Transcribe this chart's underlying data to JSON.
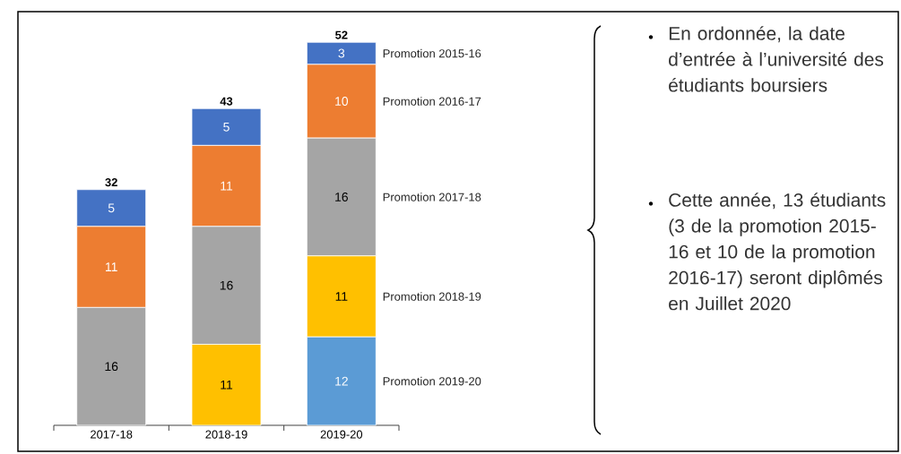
{
  "chart_data": {
    "type": "bar",
    "stacked": true,
    "data_labels": true,
    "categories": [
      "2017-18",
      "2018-19",
      "2019-20"
    ],
    "series": [
      {
        "name": "Promotion 2019-20",
        "color": "#5b9bd5",
        "values": [
          null,
          null,
          12
        ]
      },
      {
        "name": "Promotion 2018-19",
        "color": "#ffc000",
        "values": [
          null,
          11,
          11
        ]
      },
      {
        "name": "Promotion 2017-18",
        "color": "#a5a5a5",
        "values": [
          16,
          16,
          16
        ]
      },
      {
        "name": "Promotion 2016-17",
        "color": "#ed7d31",
        "values": [
          11,
          11,
          10
        ]
      },
      {
        "name": "Promotion 2015-16",
        "color": "#4472c4",
        "values": [
          5,
          5,
          3
        ]
      }
    ],
    "totals": [
      "32",
      "43",
      "52"
    ],
    "annotations": [
      "En ordonnée, la date d’entrée à l’université des étudiants boursiers",
      "Cette année, 13 étudiants (3 de la promotion 2015-16 et 10 de la promotion 2016-17) seront diplômés en Juillet 2020"
    ]
  }
}
